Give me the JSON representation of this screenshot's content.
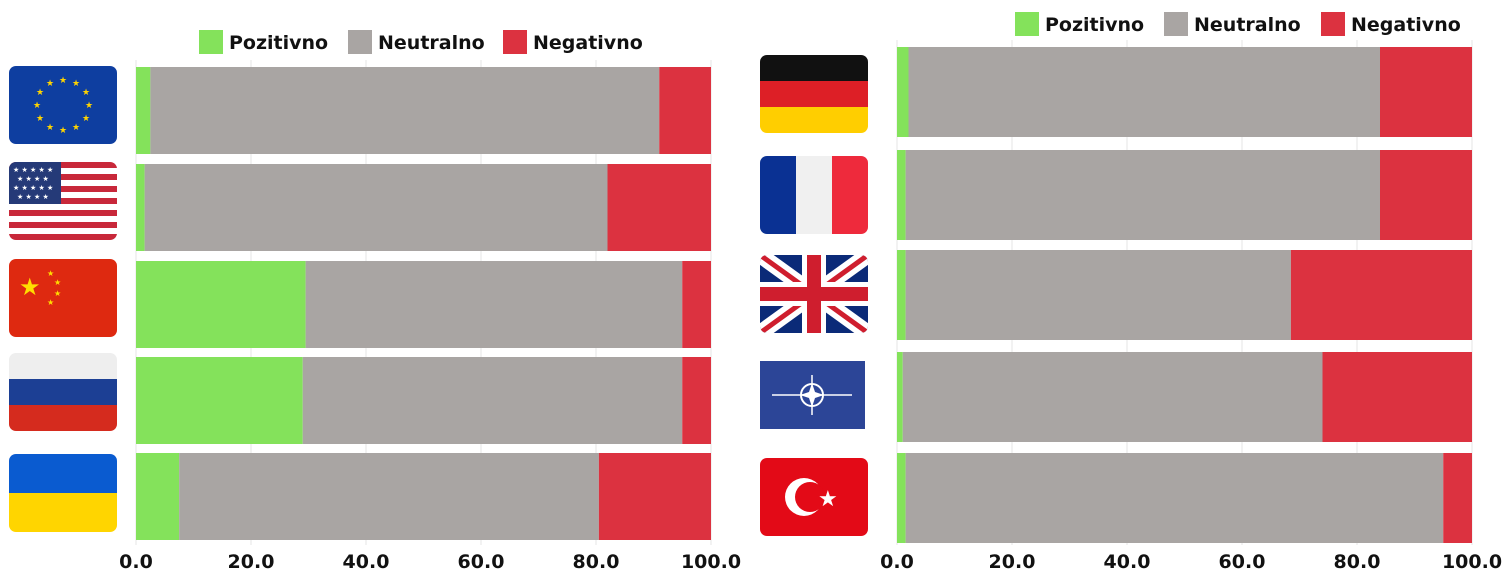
{
  "colors": {
    "positive": "#84e25b",
    "neutral": "#a9a5a3",
    "negative": "#dc3240",
    "grid": "#e4e4e4"
  },
  "chart_data": [
    {
      "type": "bar",
      "orientation": "horizontal",
      "stacked": true,
      "categories_icons": [
        "eu-flag-icon",
        "usa-flag-icon",
        "china-flag-icon",
        "russia-flag-icon",
        "ukraine-flag-icon"
      ],
      "series": [
        {
          "name": "Pozitivno",
          "values": [
            2.5,
            1.5,
            29.5,
            29.0,
            7.5
          ]
        },
        {
          "name": "Neutralno",
          "values": [
            88.5,
            80.5,
            65.5,
            66.0,
            73.0
          ]
        },
        {
          "name": "Negativno",
          "values": [
            9.0,
            18.0,
            5.0,
            5.0,
            19.5
          ]
        }
      ],
      "xlim": [
        0,
        100
      ],
      "xticks": [
        "0.0",
        "20.0",
        "40.0",
        "60.0",
        "80.0",
        "100.0"
      ],
      "legend": "top",
      "grid": true
    },
    {
      "type": "bar",
      "orientation": "horizontal",
      "stacked": true,
      "categories_icons": [
        "germany-flag-icon",
        "france-flag-icon",
        "uk-flag-icon",
        "nato-flag-icon",
        "turkey-flag-icon"
      ],
      "series": [
        {
          "name": "Pozitivno",
          "values": [
            2.0,
            1.5,
            1.5,
            1.0,
            1.5
          ]
        },
        {
          "name": "Neutralno",
          "values": [
            82.0,
            82.5,
            67.0,
            73.0,
            93.5
          ]
        },
        {
          "name": "Negativno",
          "values": [
            16.0,
            16.0,
            31.5,
            26.0,
            5.0
          ]
        }
      ],
      "xlim": [
        0,
        100
      ],
      "xticks": [
        "0.0",
        "20.0",
        "40.0",
        "60.0",
        "80.0",
        "100.0"
      ],
      "legend": "top",
      "grid": true
    }
  ]
}
